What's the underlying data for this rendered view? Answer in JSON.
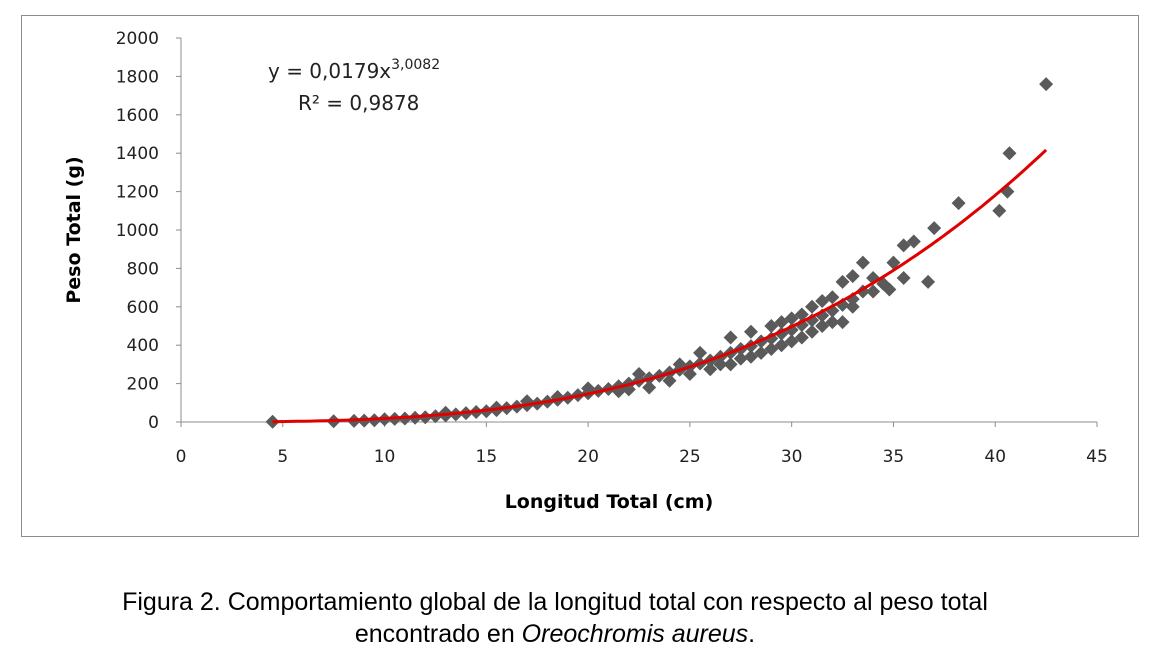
{
  "chart_data": {
    "type": "scatter",
    "xlabel": "Longitud Total  (cm)",
    "ylabel": "Peso Total  (g)",
    "xlim": [
      0,
      45
    ],
    "ylim": [
      0,
      2000
    ],
    "x_ticks": [
      "0",
      "5",
      "10",
      "15",
      "20",
      "25",
      "30",
      "35",
      "40",
      "45"
    ],
    "y_ticks": [
      "0",
      "200",
      "400",
      "600",
      "800",
      "1000",
      "1200",
      "1400",
      "1600",
      "1800",
      "2000"
    ],
    "grid": false,
    "legend": "none",
    "marker_color": "#5a5a5a",
    "trend_color": "#e00000",
    "trendline": {
      "equation_base": "y = 0,0179x",
      "equation_exp": "3,0082",
      "r2": "R² = 0,9878",
      "a": 0.0179,
      "b": 3.0082,
      "x_range": [
        4.5,
        42.5
      ]
    },
    "points": [
      [
        4.5,
        1
      ],
      [
        7.5,
        4
      ],
      [
        8.5,
        6
      ],
      [
        9.0,
        7
      ],
      [
        9.5,
        9
      ],
      [
        10.0,
        14
      ],
      [
        10.5,
        16
      ],
      [
        11.0,
        18
      ],
      [
        11.5,
        22
      ],
      [
        12.0,
        25
      ],
      [
        12.5,
        30
      ],
      [
        13.0,
        34
      ],
      [
        13.5,
        40
      ],
      [
        14.0,
        46
      ],
      [
        14.5,
        52
      ],
      [
        15.0,
        56
      ],
      [
        15.5,
        62
      ],
      [
        16.0,
        72
      ],
      [
        16.5,
        80
      ],
      [
        17.0,
        88
      ],
      [
        17.5,
        96
      ],
      [
        18.0,
        106
      ],
      [
        18.5,
        116
      ],
      [
        19.0,
        126
      ],
      [
        19.5,
        140
      ],
      [
        20.0,
        150
      ],
      [
        20.5,
        162
      ],
      [
        21.0,
        172
      ],
      [
        21.5,
        186
      ],
      [
        22.0,
        200
      ],
      [
        22.5,
        215
      ],
      [
        23.0,
        228
      ],
      [
        23.5,
        240
      ],
      [
        24.0,
        258
      ],
      [
        24.5,
        272
      ],
      [
        25.0,
        290
      ],
      [
        25.5,
        305
      ],
      [
        26.0,
        320
      ],
      [
        26.5,
        340
      ],
      [
        27.0,
        360
      ],
      [
        27.5,
        380
      ],
      [
        28.0,
        395
      ],
      [
        28.5,
        420
      ],
      [
        29.0,
        435
      ],
      [
        29.5,
        460
      ],
      [
        30.0,
        480
      ],
      [
        30.5,
        505
      ],
      [
        31.0,
        530
      ],
      [
        31.5,
        555
      ],
      [
        32.0,
        580
      ],
      [
        32.5,
        610
      ],
      [
        33.0,
        640
      ],
      [
        13.0,
        48
      ],
      [
        15.5,
        75
      ],
      [
        17.0,
        108
      ],
      [
        18.5,
        130
      ],
      [
        20.0,
        175
      ],
      [
        21.5,
        160
      ],
      [
        22.0,
        170
      ],
      [
        22.5,
        250
      ],
      [
        23.0,
        180
      ],
      [
        24.0,
        215
      ],
      [
        24.5,
        300
      ],
      [
        25.0,
        250
      ],
      [
        25.5,
        360
      ],
      [
        26.0,
        275
      ],
      [
        26.5,
        300
      ],
      [
        27.0,
        440
      ],
      [
        27.0,
        300
      ],
      [
        27.5,
        330
      ],
      [
        28.0,
        470
      ],
      [
        28.0,
        340
      ],
      [
        28.5,
        360
      ],
      [
        29.0,
        500
      ],
      [
        29.0,
        380
      ],
      [
        29.5,
        520
      ],
      [
        29.5,
        400
      ],
      [
        30.0,
        540
      ],
      [
        30.0,
        420
      ],
      [
        30.5,
        560
      ],
      [
        30.5,
        440
      ],
      [
        31.0,
        600
      ],
      [
        31.0,
        470
      ],
      [
        31.5,
        630
      ],
      [
        31.5,
        500
      ],
      [
        32.0,
        520
      ],
      [
        32.0,
        650
      ],
      [
        32.5,
        730
      ],
      [
        32.5,
        520
      ],
      [
        33.0,
        760
      ],
      [
        33.0,
        600
      ],
      [
        33.5,
        830
      ],
      [
        33.5,
        680
      ],
      [
        34.0,
        750
      ],
      [
        34.0,
        680
      ],
      [
        34.5,
        720
      ],
      [
        35.0,
        830
      ],
      [
        34.8,
        690
      ],
      [
        35.5,
        750
      ],
      [
        35.5,
        920
      ],
      [
        36.0,
        940
      ],
      [
        36.7,
        730
      ],
      [
        37.0,
        1010
      ],
      [
        38.2,
        1140
      ],
      [
        40.2,
        1100
      ],
      [
        40.6,
        1200
      ],
      [
        40.7,
        1400
      ],
      [
        42.5,
        1760
      ]
    ]
  },
  "caption": {
    "line1": "Figura 2. Comportamiento global de la longitud total con respecto al peso total",
    "line2_prefix": "encontrado en ",
    "line2_species": "Oreochromis aureus",
    "line2_suffix": "."
  }
}
